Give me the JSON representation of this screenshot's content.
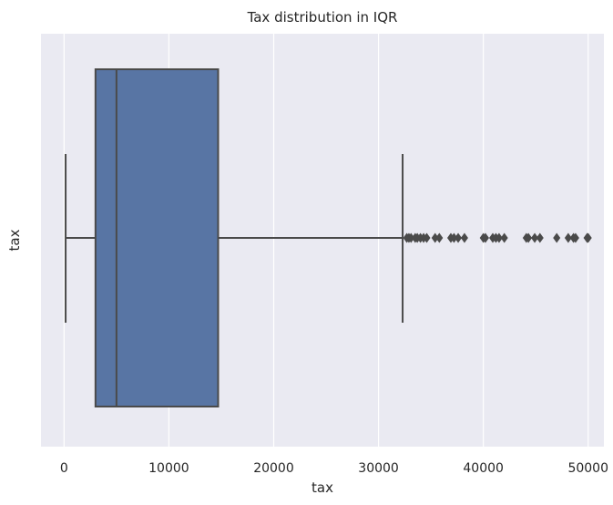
{
  "chart_data": {
    "type": "box",
    "title": "Tax distribution in IQR",
    "xlabel": "tax",
    "ylabel": "tax",
    "orientation": "horizontal",
    "grid": true,
    "xlim": [
      -2200,
      51500
    ],
    "x_ticks": [
      0,
      10000,
      20000,
      30000,
      40000,
      50000
    ],
    "x_tick_labels": [
      "0",
      "10000",
      "20000",
      "30000",
      "40000",
      "50000"
    ],
    "colors": {
      "background": "#eaeaf2",
      "grid": "#ffffff",
      "box_fill": "#5875a4",
      "line": "#4a4a4a"
    },
    "box": {
      "whisker_low": 150,
      "q1": 3000,
      "median": 5000,
      "q3": 14700,
      "whisker_high": 32300
    },
    "outliers": [
      32700,
      32900,
      33100,
      33500,
      33700,
      34000,
      34300,
      34600,
      35400,
      35800,
      36900,
      37200,
      37600,
      38200,
      40000,
      40200,
      40900,
      41200,
      41500,
      42000,
      44100,
      44300,
      44900,
      45400,
      47000,
      48100,
      48600,
      48800,
      49900,
      50000
    ]
  }
}
